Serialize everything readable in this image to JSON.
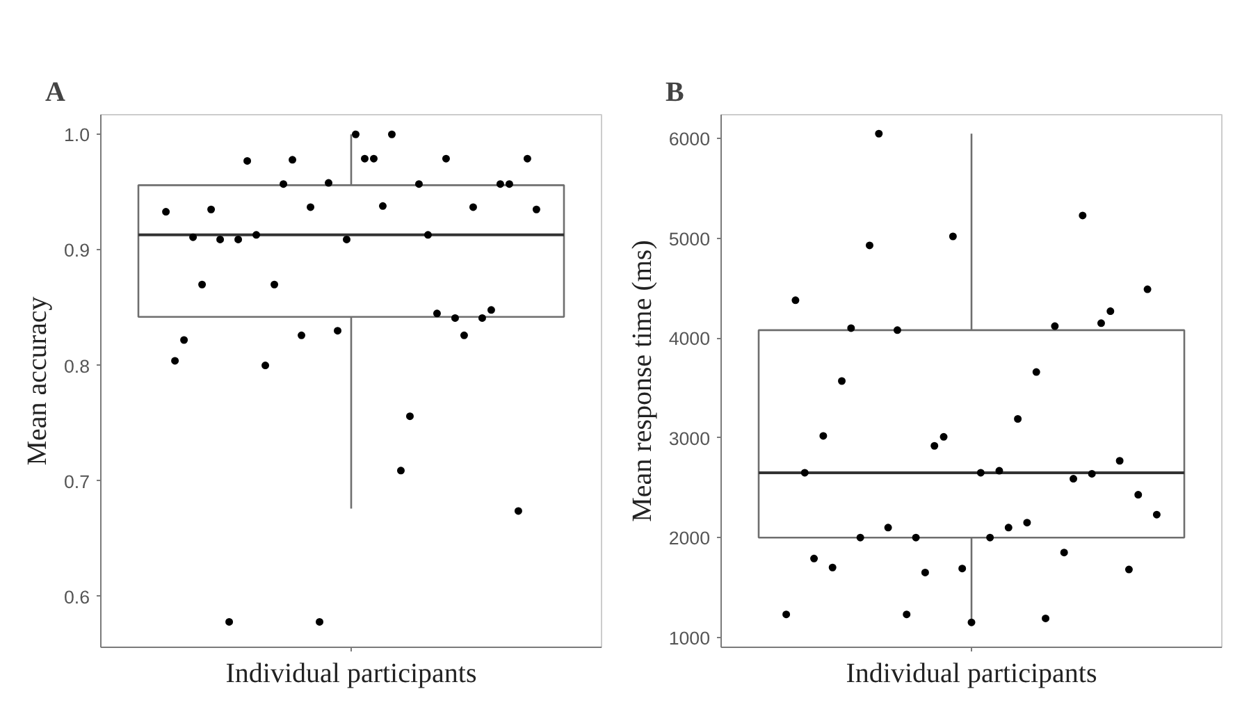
{
  "chart_data": [
    {
      "type": "box",
      "title": "A",
      "xlabel": "Individual participants",
      "ylabel": "Mean accuracy",
      "categories": [
        null
      ],
      "boxes": [
        {
          "low": 0.676,
          "q1": 0.842,
          "median": 0.913,
          "q3": 0.956,
          "high": 1.0
        }
      ],
      "series": [
        {
          "type": "scatter",
          "color": "#000000",
          "marker": "circle",
          "x": [
            null,
            null,
            null,
            null,
            null,
            null,
            null,
            null,
            null,
            null,
            null,
            null,
            null,
            null,
            null,
            null,
            null,
            null,
            null,
            null,
            null,
            null,
            null,
            null,
            null,
            null,
            null,
            null,
            null,
            null,
            null,
            null,
            null,
            null,
            null,
            null,
            null,
            null,
            null,
            null,
            null,
            null
          ],
          "values": [
            0.933,
            0.804,
            0.822,
            0.911,
            0.87,
            0.935,
            0.909,
            0.578,
            0.909,
            0.977,
            0.913,
            0.8,
            0.87,
            0.957,
            0.978,
            0.826,
            0.937,
            0.578,
            0.958,
            0.83,
            0.909,
            1.0,
            0.979,
            0.979,
            0.938,
            1.0,
            0.709,
            0.756,
            0.957,
            0.913,
            0.845,
            0.979,
            0.841,
            0.826,
            0.937,
            0.841,
            0.848,
            0.957,
            0.957,
            0.674,
            0.979,
            0.935
          ]
        }
      ],
      "ylim": [
        0.556,
        1.017
      ],
      "yticks": [
        0.6,
        0.7,
        0.8,
        0.9,
        {
          "value": 1.0,
          "label": "1.0"
        }
      ],
      "tick_labels": "y",
      "grid": false
    },
    {
      "type": "box",
      "title": "B",
      "xlabel": "Individual participants",
      "ylabel": "Mean response time (ms)",
      "categories": [
        null
      ],
      "boxes": [
        {
          "low": 1160,
          "q1": 2000,
          "median": 2650,
          "q3": 4080,
          "high": 6050
        }
      ],
      "series": [
        {
          "type": "scatter",
          "color": "#000000",
          "marker": "circle",
          "x": [
            null,
            null,
            null,
            null,
            null,
            null,
            null,
            null,
            null,
            null,
            null,
            null,
            null,
            null,
            null,
            null,
            null,
            null,
            null,
            null,
            null,
            null,
            null,
            null,
            null,
            null,
            null,
            null,
            null,
            null,
            null,
            null,
            null,
            null,
            null,
            null,
            null,
            null,
            null,
            null,
            null
          ],
          "values": [
            1230,
            4380,
            2650,
            1790,
            3020,
            1700,
            3570,
            4100,
            2000,
            4930,
            6050,
            2100,
            4080,
            1230,
            2000,
            1650,
            2920,
            3010,
            5020,
            1690,
            1150,
            2650,
            2000,
            2670,
            2100,
            3190,
            2150,
            3660,
            1190,
            4120,
            1850,
            2590,
            5230,
            2640,
            4150,
            4270,
            2770,
            1680,
            2430,
            4490,
            2230
          ]
        }
      ],
      "ylim": [
        900,
        6240
      ],
      "yticks": [
        1000,
        2000,
        3000,
        4000,
        5000,
        6000
      ],
      "tick_labels": "y",
      "grid": false
    }
  ]
}
